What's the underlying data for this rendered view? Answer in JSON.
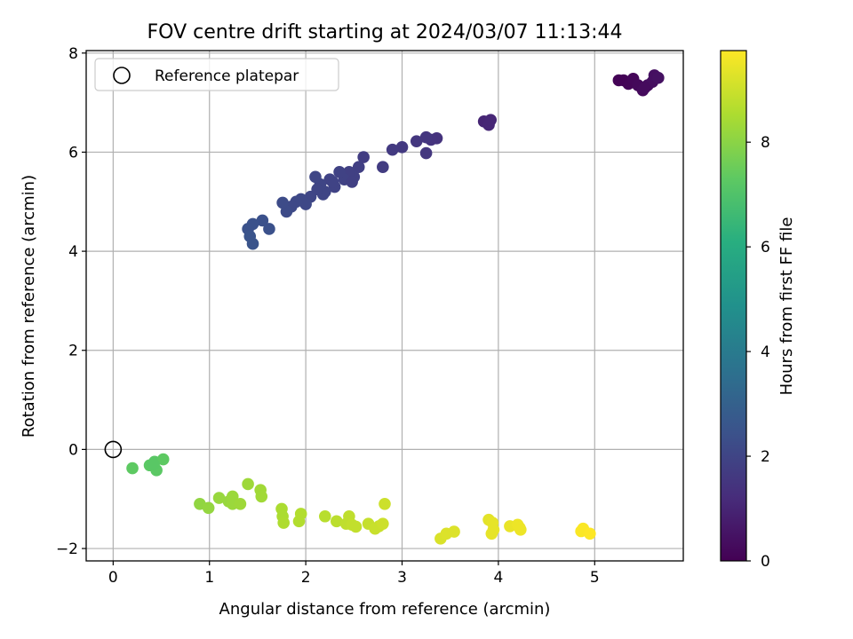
{
  "chart_data": {
    "type": "scatter",
    "title": "FOV centre drift starting at 2024/03/07 11:13:44",
    "xlabel": "Angular distance from reference (arcmin)",
    "ylabel": "Rotation from reference (arcmin)",
    "xlim": [
      -0.28,
      5.92
    ],
    "ylim": [
      -2.25,
      8.05
    ],
    "xticks": [
      0,
      1,
      2,
      3,
      4,
      5
    ],
    "yticks": [
      -2,
      0,
      2,
      4,
      6,
      8
    ],
    "grid": true,
    "legend": {
      "placement": "top-left",
      "entries": [
        "Reference platepar"
      ]
    },
    "reference_point": {
      "x": 0,
      "y": 0,
      "label": "Reference platepar"
    },
    "colorbar": {
      "label": "Hours from first FF file",
      "colormap": "viridis",
      "range": [
        0,
        9.75
      ],
      "ticks": [
        0,
        2,
        4,
        6,
        8
      ]
    },
    "points": [
      {
        "x": 5.3,
        "y": 7.45,
        "t": 0.05
      },
      {
        "x": 5.35,
        "y": 7.38,
        "t": 0.1
      },
      {
        "x": 5.4,
        "y": 7.48,
        "t": 0.15
      },
      {
        "x": 5.45,
        "y": 7.35,
        "t": 0.2
      },
      {
        "x": 5.5,
        "y": 7.25,
        "t": 0.25
      },
      {
        "x": 5.55,
        "y": 7.35,
        "t": 0.3
      },
      {
        "x": 5.6,
        "y": 7.42,
        "t": 0.35
      },
      {
        "x": 5.62,
        "y": 7.55,
        "t": 0.4
      },
      {
        "x": 5.66,
        "y": 7.5,
        "t": 0.45
      },
      {
        "x": 5.25,
        "y": 7.45,
        "t": 0.05
      },
      {
        "x": 5.52,
        "y": 7.3,
        "t": 0.28
      },
      {
        "x": 3.85,
        "y": 6.62,
        "t": 1.0
      },
      {
        "x": 3.9,
        "y": 6.55,
        "t": 1.05
      },
      {
        "x": 3.92,
        "y": 6.65,
        "t": 1.05
      },
      {
        "x": 3.36,
        "y": 6.28,
        "t": 1.4
      },
      {
        "x": 3.3,
        "y": 6.25,
        "t": 1.45
      },
      {
        "x": 3.25,
        "y": 6.3,
        "t": 1.5
      },
      {
        "x": 3.15,
        "y": 6.22,
        "t": 1.55
      },
      {
        "x": 3.25,
        "y": 5.98,
        "t": 1.55
      },
      {
        "x": 3.0,
        "y": 6.1,
        "t": 1.6
      },
      {
        "x": 2.9,
        "y": 6.05,
        "t": 1.65
      },
      {
        "x": 2.8,
        "y": 5.7,
        "t": 1.7
      },
      {
        "x": 2.6,
        "y": 5.9,
        "t": 1.75
      },
      {
        "x": 2.55,
        "y": 5.7,
        "t": 1.8
      },
      {
        "x": 2.5,
        "y": 5.5,
        "t": 1.85
      },
      {
        "x": 2.45,
        "y": 5.6,
        "t": 1.85
      },
      {
        "x": 2.4,
        "y": 5.45,
        "t": 1.9
      },
      {
        "x": 2.35,
        "y": 5.6,
        "t": 1.9
      },
      {
        "x": 2.3,
        "y": 5.3,
        "t": 1.95
      },
      {
        "x": 2.25,
        "y": 5.45,
        "t": 1.95
      },
      {
        "x": 2.2,
        "y": 5.2,
        "t": 2.0
      },
      {
        "x": 2.15,
        "y": 5.35,
        "t": 2.0
      },
      {
        "x": 2.1,
        "y": 5.5,
        "t": 2.05
      },
      {
        "x": 2.05,
        "y": 5.1,
        "t": 2.05
      },
      {
        "x": 2.0,
        "y": 4.95,
        "t": 2.1
      },
      {
        "x": 1.95,
        "y": 5.05,
        "t": 2.1
      },
      {
        "x": 1.9,
        "y": 5.0,
        "t": 2.15
      },
      {
        "x": 1.85,
        "y": 4.9,
        "t": 2.15
      },
      {
        "x": 1.8,
        "y": 4.8,
        "t": 2.2
      },
      {
        "x": 1.76,
        "y": 4.98,
        "t": 2.2
      },
      {
        "x": 2.18,
        "y": 5.15,
        "t": 2.0
      },
      {
        "x": 2.28,
        "y": 5.4,
        "t": 1.95
      },
      {
        "x": 2.48,
        "y": 5.4,
        "t": 1.85
      },
      {
        "x": 2.12,
        "y": 5.25,
        "t": 2.0
      },
      {
        "x": 1.62,
        "y": 4.45,
        "t": 2.4
      },
      {
        "x": 1.55,
        "y": 4.62,
        "t": 2.4
      },
      {
        "x": 1.45,
        "y": 4.55,
        "t": 2.45
      },
      {
        "x": 1.4,
        "y": 4.45,
        "t": 2.45
      },
      {
        "x": 1.42,
        "y": 4.3,
        "t": 2.5
      },
      {
        "x": 1.45,
        "y": 4.15,
        "t": 2.5
      },
      {
        "x": 0.43,
        "y": -0.25,
        "t": 7.2
      },
      {
        "x": 0.38,
        "y": -0.32,
        "t": 7.25
      },
      {
        "x": 0.45,
        "y": -0.42,
        "t": 7.25
      },
      {
        "x": 0.52,
        "y": -0.2,
        "t": 7.3
      },
      {
        "x": 0.2,
        "y": -0.38,
        "t": 7.3
      },
      {
        "x": 0.42,
        "y": -0.3,
        "t": 7.2
      },
      {
        "x": 0.9,
        "y": -1.1,
        "t": 8.1
      },
      {
        "x": 0.99,
        "y": -1.18,
        "t": 8.15
      },
      {
        "x": 1.1,
        "y": -0.98,
        "t": 8.2
      },
      {
        "x": 1.2,
        "y": -1.05,
        "t": 8.2
      },
      {
        "x": 1.24,
        "y": -0.95,
        "t": 8.25
      },
      {
        "x": 1.24,
        "y": -1.1,
        "t": 8.25
      },
      {
        "x": 1.32,
        "y": -1.1,
        "t": 8.3
      },
      {
        "x": 1.4,
        "y": -0.7,
        "t": 8.3
      },
      {
        "x": 1.53,
        "y": -0.82,
        "t": 8.35
      },
      {
        "x": 1.54,
        "y": -0.95,
        "t": 8.35
      },
      {
        "x": 1.75,
        "y": -1.2,
        "t": 8.5
      },
      {
        "x": 1.76,
        "y": -1.35,
        "t": 8.5
      },
      {
        "x": 1.77,
        "y": -1.48,
        "t": 8.55
      },
      {
        "x": 1.93,
        "y": -1.45,
        "t": 8.6
      },
      {
        "x": 1.95,
        "y": -1.3,
        "t": 8.6
      },
      {
        "x": 2.2,
        "y": -1.35,
        "t": 8.7
      },
      {
        "x": 2.32,
        "y": -1.45,
        "t": 8.75
      },
      {
        "x": 2.42,
        "y": -1.5,
        "t": 8.8
      },
      {
        "x": 2.45,
        "y": -1.35,
        "t": 8.8
      },
      {
        "x": 2.48,
        "y": -1.52,
        "t": 8.85
      },
      {
        "x": 2.52,
        "y": -1.56,
        "t": 8.85
      },
      {
        "x": 2.65,
        "y": -1.5,
        "t": 8.9
      },
      {
        "x": 2.72,
        "y": -1.6,
        "t": 8.95
      },
      {
        "x": 2.76,
        "y": -1.55,
        "t": 8.95
      },
      {
        "x": 2.8,
        "y": -1.5,
        "t": 9.0
      },
      {
        "x": 2.82,
        "y": -1.1,
        "t": 9.0
      },
      {
        "x": 3.4,
        "y": -1.8,
        "t": 9.2
      },
      {
        "x": 3.46,
        "y": -1.7,
        "t": 9.25
      },
      {
        "x": 3.54,
        "y": -1.66,
        "t": 9.25
      },
      {
        "x": 3.9,
        "y": -1.42,
        "t": 9.35
      },
      {
        "x": 3.94,
        "y": -1.48,
        "t": 9.4
      },
      {
        "x": 3.95,
        "y": -1.62,
        "t": 9.4
      },
      {
        "x": 3.93,
        "y": -1.7,
        "t": 9.4
      },
      {
        "x": 4.12,
        "y": -1.55,
        "t": 9.45
      },
      {
        "x": 4.2,
        "y": -1.52,
        "t": 9.5
      },
      {
        "x": 4.22,
        "y": -1.58,
        "t": 9.5
      },
      {
        "x": 4.23,
        "y": -1.62,
        "t": 9.5
      },
      {
        "x": 4.86,
        "y": -1.65,
        "t": 9.7
      },
      {
        "x": 4.88,
        "y": -1.6,
        "t": 9.7
      },
      {
        "x": 4.95,
        "y": -1.7,
        "t": 9.75
      }
    ]
  }
}
